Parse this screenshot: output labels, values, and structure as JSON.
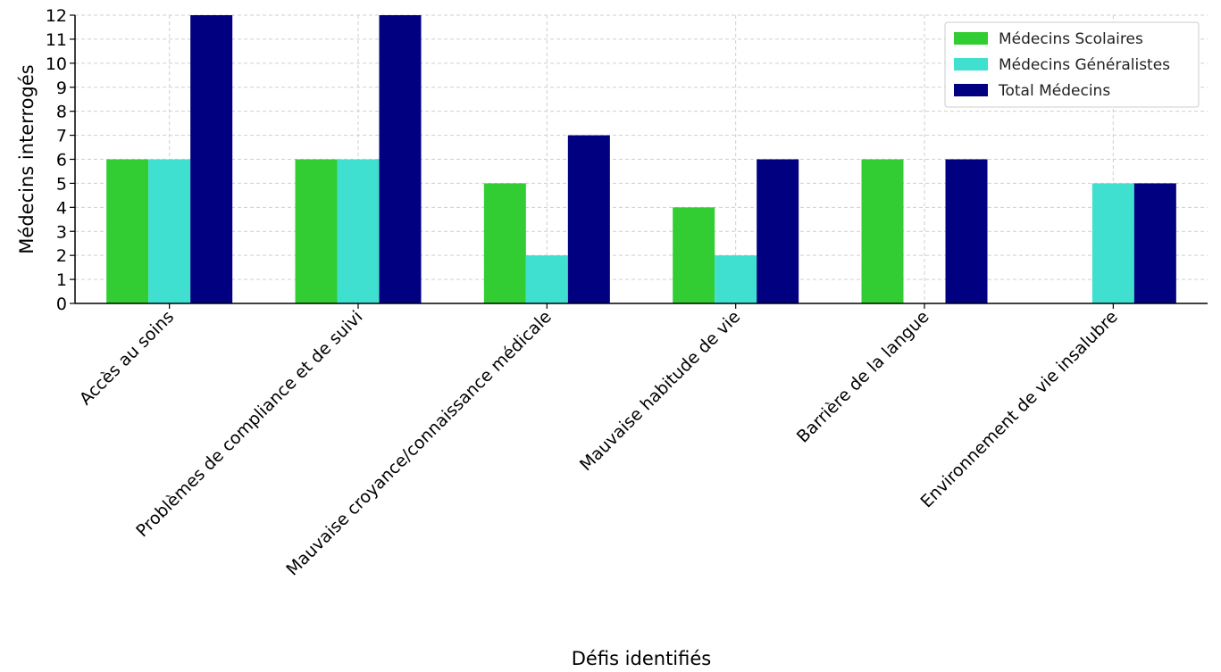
{
  "chart_data": {
    "type": "bar",
    "title": "",
    "xlabel": "Défis identifiés",
    "ylabel": "Médecins interrogés",
    "ylim": [
      0,
      12
    ],
    "yticks": [
      0,
      1,
      2,
      3,
      4,
      5,
      6,
      7,
      8,
      9,
      10,
      11,
      12
    ],
    "grid": true,
    "legend_position": "top-right",
    "categories": [
      "Accès au soins",
      "Problèmes de compliance et de suivi",
      "Mauvaise croyance/connaissance médicale",
      "Mauvaise habitude de vie",
      "Barrière de la langue",
      "Environnement de vie insalubre"
    ],
    "series": [
      {
        "name": "Médecins Scolaires",
        "color": "#32cd32",
        "values": [
          6,
          6,
          5,
          4,
          6,
          0
        ]
      },
      {
        "name": "Médecins Généralistes",
        "color": "#40e0d0",
        "values": [
          6,
          6,
          2,
          2,
          0,
          5
        ]
      },
      {
        "name": "Total Médecins",
        "color": "#000080",
        "values": [
          12,
          12,
          7,
          6,
          6,
          5
        ]
      }
    ]
  }
}
